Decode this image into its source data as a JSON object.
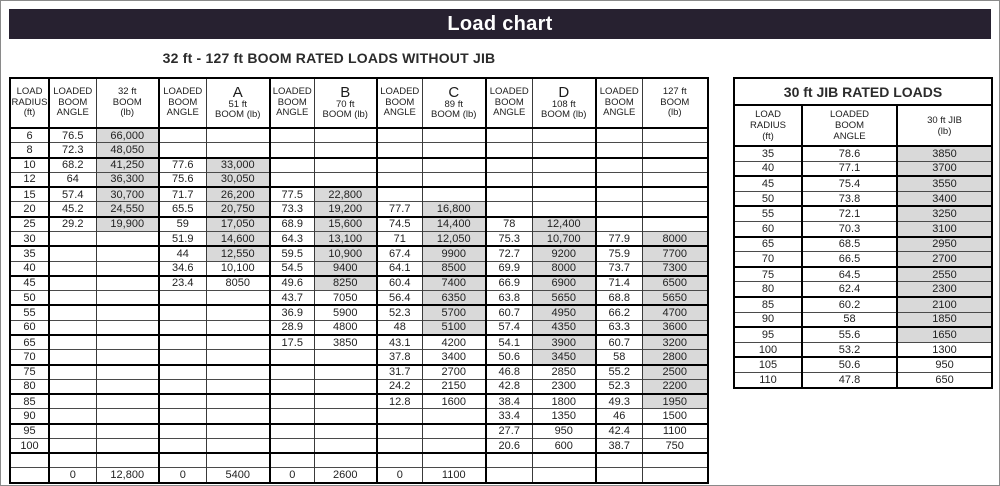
{
  "colors": {
    "title_bar_bg": "#272130",
    "shaded_cell": "#d9d9d9"
  },
  "title_bar": {
    "title": "Load chart"
  },
  "main_table": {
    "title": "32 ft - 127 ft BOOM RATED LOADS WITHOUT JIB",
    "radius_header": [
      "LOAD",
      "RADIUS",
      "(ft)"
    ],
    "angle_header": [
      "LOADED",
      "BOOM",
      "ANGLE"
    ],
    "boom_headers": [
      {
        "big": "",
        "lines": [
          "32 ft",
          "BOOM",
          "(lb)"
        ]
      },
      {
        "big": "A",
        "lines": [
          "51 ft",
          "BOOM (lb)"
        ]
      },
      {
        "big": "B",
        "lines": [
          "70 ft",
          "BOOM (lb)"
        ]
      },
      {
        "big": "C",
        "lines": [
          "89 ft",
          "BOOM (lb)"
        ]
      },
      {
        "big": "D",
        "lines": [
          "108 ft",
          "BOOM (lb)"
        ]
      },
      {
        "big": "",
        "lines": [
          "127 ft",
          "BOOM",
          "(lb)"
        ]
      }
    ],
    "rows": [
      [
        "6",
        [
          "76.5",
          "66,000",
          1
        ],
        null,
        null,
        null,
        null,
        null
      ],
      [
        "8",
        [
          "72.3",
          "48,050",
          1
        ],
        null,
        null,
        null,
        null,
        null
      ],
      [
        "10",
        [
          "68.2",
          "41,250",
          1
        ],
        [
          "77.6",
          "33,000",
          1
        ],
        null,
        null,
        null,
        null
      ],
      [
        "12",
        [
          "64",
          "36,300",
          1
        ],
        [
          "75.6",
          "30,050",
          1
        ],
        null,
        null,
        null,
        null
      ],
      [
        "15",
        [
          "57.4",
          "30,700",
          1
        ],
        [
          "71.7",
          "26,200",
          1
        ],
        [
          "77.5",
          "22,800",
          1
        ],
        null,
        null,
        null
      ],
      [
        "20",
        [
          "45.2",
          "24,550",
          1
        ],
        [
          "65.5",
          "20,750",
          1
        ],
        [
          "73.3",
          "19,200",
          1
        ],
        [
          "77.7",
          "16,800",
          1
        ],
        null,
        null
      ],
      [
        "25",
        [
          "29.2",
          "19,900",
          1
        ],
        [
          "59",
          "17,050",
          1
        ],
        [
          "68.9",
          "15,600",
          1
        ],
        [
          "74.5",
          "14,400",
          1
        ],
        [
          "78",
          "12,400",
          1
        ],
        null
      ],
      [
        "30",
        null,
        [
          "51.9",
          "14,600",
          1
        ],
        [
          "64.3",
          "13,100",
          1
        ],
        [
          "71",
          "12,050",
          1
        ],
        [
          "75.3",
          "10,700",
          1
        ],
        [
          "77.9",
          "8000",
          1
        ]
      ],
      [
        "35",
        null,
        [
          "44",
          "12,550",
          1
        ],
        [
          "59.5",
          "10,900",
          1
        ],
        [
          "67.4",
          "9900",
          1
        ],
        [
          "72.7",
          "9200",
          1
        ],
        [
          "75.9",
          "7700",
          1
        ]
      ],
      [
        "40",
        null,
        [
          "34.6",
          "10,100",
          0
        ],
        [
          "54.5",
          "9400",
          1
        ],
        [
          "64.1",
          "8500",
          1
        ],
        [
          "69.9",
          "8000",
          1
        ],
        [
          "73.7",
          "7300",
          1
        ]
      ],
      [
        "45",
        null,
        [
          "23.4",
          "8050",
          0
        ],
        [
          "49.6",
          "8250",
          1
        ],
        [
          "60.4",
          "7400",
          1
        ],
        [
          "66.9",
          "6900",
          1
        ],
        [
          "71.4",
          "6500",
          1
        ]
      ],
      [
        "50",
        null,
        null,
        [
          "43.7",
          "7050",
          0
        ],
        [
          "56.4",
          "6350",
          1
        ],
        [
          "63.8",
          "5650",
          1
        ],
        [
          "68.8",
          "5650",
          1
        ]
      ],
      [
        "55",
        null,
        null,
        [
          "36.9",
          "5900",
          0
        ],
        [
          "52.3",
          "5700",
          1
        ],
        [
          "60.7",
          "4950",
          1
        ],
        [
          "66.2",
          "4700",
          1
        ]
      ],
      [
        "60",
        null,
        null,
        [
          "28.9",
          "4800",
          0
        ],
        [
          "48",
          "5100",
          1
        ],
        [
          "57.4",
          "4350",
          1
        ],
        [
          "63.3",
          "3600",
          1
        ]
      ],
      [
        "65",
        null,
        null,
        [
          "17.5",
          "3850",
          0
        ],
        [
          "43.1",
          "4200",
          0
        ],
        [
          "54.1",
          "3900",
          1
        ],
        [
          "60.7",
          "3200",
          1
        ]
      ],
      [
        "70",
        null,
        null,
        null,
        [
          "37.8",
          "3400",
          0
        ],
        [
          "50.6",
          "3450",
          1
        ],
        [
          "58",
          "2800",
          1
        ]
      ],
      [
        "75",
        null,
        null,
        null,
        [
          "31.7",
          "2700",
          0
        ],
        [
          "46.8",
          "2850",
          0
        ],
        [
          "55.2",
          "2500",
          1
        ]
      ],
      [
        "80",
        null,
        null,
        null,
        [
          "24.2",
          "2150",
          0
        ],
        [
          "42.8",
          "2300",
          0
        ],
        [
          "52.3",
          "2200",
          1
        ]
      ],
      [
        "85",
        null,
        null,
        null,
        [
          "12.8",
          "1600",
          0
        ],
        [
          "38.4",
          "1800",
          0
        ],
        [
          "49.3",
          "1950",
          1
        ]
      ],
      [
        "90",
        null,
        null,
        null,
        null,
        [
          "33.4",
          "1350",
          0
        ],
        [
          "46",
          "1500",
          0
        ]
      ],
      [
        "95",
        null,
        null,
        null,
        null,
        [
          "27.7",
          "950",
          0
        ],
        [
          "42.4",
          "1100",
          0
        ]
      ],
      [
        "100",
        null,
        null,
        null,
        null,
        [
          "20.6",
          "600",
          0
        ],
        [
          "38.7",
          "750",
          0
        ]
      ],
      [
        "",
        null,
        null,
        null,
        null,
        null,
        null
      ],
      [
        "",
        [
          "0",
          "12,800",
          0
        ],
        [
          "0",
          "5400",
          0
        ],
        [
          "0",
          "2600",
          0
        ],
        [
          "0",
          "1100",
          0
        ],
        null,
        null
      ]
    ]
  },
  "jib_table": {
    "title": "30 ft JIB RATED LOADS",
    "headers": [
      [
        "LOAD",
        "RADIUS",
        "(ft)"
      ],
      [
        "LOADED",
        "BOOM",
        "ANGLE"
      ],
      [
        "30 ft JIB",
        "(lb)"
      ]
    ],
    "rows": [
      [
        "35",
        "78.6",
        "3850",
        1
      ],
      [
        "40",
        "77.1",
        "3700",
        1
      ],
      [
        "45",
        "75.4",
        "3550",
        1
      ],
      [
        "50",
        "73.8",
        "3400",
        1
      ],
      [
        "55",
        "72.1",
        "3250",
        1
      ],
      [
        "60",
        "70.3",
        "3100",
        1
      ],
      [
        "65",
        "68.5",
        "2950",
        1
      ],
      [
        "70",
        "66.5",
        "2700",
        1
      ],
      [
        "75",
        "64.5",
        "2550",
        1
      ],
      [
        "80",
        "62.4",
        "2300",
        1
      ],
      [
        "85",
        "60.2",
        "2100",
        1
      ],
      [
        "90",
        "58",
        "1850",
        1
      ],
      [
        "95",
        "55.6",
        "1650",
        1
      ],
      [
        "100",
        "53.2",
        "1300",
        0
      ],
      [
        "105",
        "50.6",
        "950",
        0
      ],
      [
        "110",
        "47.8",
        "650",
        0
      ]
    ]
  }
}
